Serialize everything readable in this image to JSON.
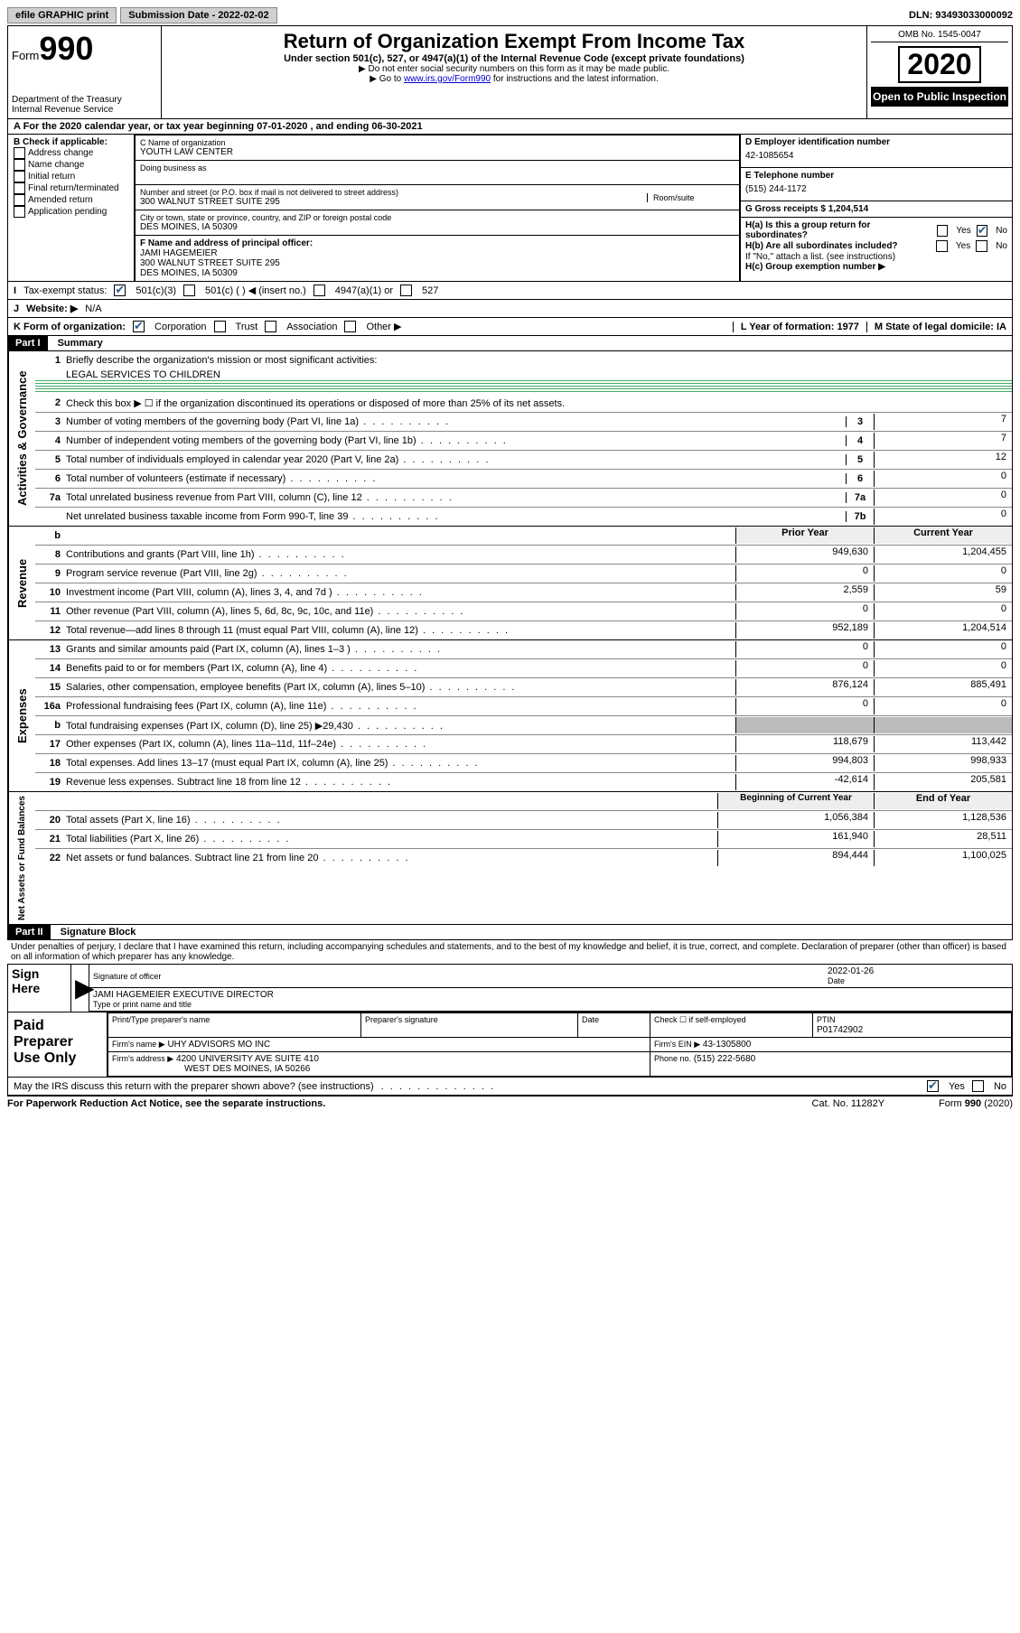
{
  "topbar": {
    "efile": "efile GRAPHIC print",
    "sub_label": "Submission Date - 2022-02-02",
    "dln": "DLN: 93493033000092"
  },
  "header": {
    "form_label": "Form",
    "form_num": "990",
    "dept1": "Department of the Treasury",
    "dept2": "Internal Revenue Service",
    "title": "Return of Organization Exempt From Income Tax",
    "subtitle": "Under section 501(c), 527, or 4947(a)(1) of the Internal Revenue Code (except private foundations)",
    "note1": "▶ Do not enter social security numbers on this form as it may be made public.",
    "note2_pre": "▶ Go to ",
    "note2_link": "www.irs.gov/Form990",
    "note2_post": " for instructions and the latest information.",
    "omb": "OMB No. 1545-0047",
    "year": "2020",
    "open": "Open to Public Inspection"
  },
  "rowA": "A For the 2020 calendar year, or tax year beginning 07-01-2020    , and ending 06-30-2021",
  "colB": {
    "title": "B Check if applicable:",
    "opts": [
      "Address change",
      "Name change",
      "Initial return",
      "Final return/terminated",
      "Amended return",
      "Application pending"
    ]
  },
  "colC": {
    "c_label": "C Name of organization",
    "org": "YOUTH LAW CENTER",
    "dba_label": "Doing business as",
    "addr_label": "Number and street (or P.O. box if mail is not delivered to street address)",
    "room": "Room/suite",
    "addr": "300 WALNUT STREET SUITE 295",
    "city_label": "City or town, state or province, country, and ZIP or foreign postal code",
    "city": "DES MOINES, IA  50309",
    "f_label": "F Name and address of principal officer:",
    "f_name": "JAMI HAGEMEIER",
    "f_addr1": "300 WALNUT STREET SUITE 295",
    "f_addr2": "DES MOINES, IA  50309"
  },
  "colD": {
    "d_label": "D Employer identification number",
    "ein": "42-1085654",
    "e_label": "E Telephone number",
    "phone": "(515) 244-1172",
    "g_label": "G Gross receipts $ 1,204,514",
    "ha": "H(a)  Is this a group return for subordinates?",
    "hb": "H(b)  Are all subordinates included?",
    "hb_note": "If \"No,\" attach a list. (see instructions)",
    "hc": "H(c)  Group exemption number ▶",
    "yes": "Yes",
    "no": "No"
  },
  "rowI": {
    "label": "Tax-exempt status:",
    "o1": "501(c)(3)",
    "o2": "501(c) (  ) ◀ (insert no.)",
    "o3": "4947(a)(1) or",
    "o4": "527"
  },
  "rowJ": {
    "label": "Website: ▶",
    "val": "N/A"
  },
  "rowK": {
    "label": "K Form of organization:",
    "o1": "Corporation",
    "o2": "Trust",
    "o3": "Association",
    "o4": "Other ▶",
    "l": "L Year of formation: 1977",
    "m": "M State of legal domicile: IA"
  },
  "partI": {
    "tag": "Part I",
    "title": "Summary",
    "l1": "Briefly describe the organization's mission or most significant activities:",
    "l1v": "LEGAL SERVICES TO CHILDREN",
    "l2": "Check this box ▶ ☐  if the organization discontinued its operations or disposed of more than 25% of its net assets.",
    "lines": [
      {
        "n": "3",
        "t": "Number of voting members of the governing body (Part VI, line 1a)",
        "c": "3",
        "v": "7"
      },
      {
        "n": "4",
        "t": "Number of independent voting members of the governing body (Part VI, line 1b)",
        "c": "4",
        "v": "7"
      },
      {
        "n": "5",
        "t": "Total number of individuals employed in calendar year 2020 (Part V, line 2a)",
        "c": "5",
        "v": "12"
      },
      {
        "n": "6",
        "t": "Total number of volunteers (estimate if necessary)",
        "c": "6",
        "v": "0"
      },
      {
        "n": "7a",
        "t": "Total unrelated business revenue from Part VIII, column (C), line 12",
        "c": "7a",
        "v": "0"
      },
      {
        "n": "",
        "t": "Net unrelated business taxable income from Form 990-T, line 39",
        "c": "7b",
        "v": "0"
      }
    ],
    "rev_hdr_b": "b",
    "rev_hdr_prior": "Prior Year",
    "rev_hdr_curr": "Current Year",
    "rev": [
      {
        "n": "8",
        "t": "Contributions and grants (Part VIII, line 1h)",
        "p": "949,630",
        "c": "1,204,455"
      },
      {
        "n": "9",
        "t": "Program service revenue (Part VIII, line 2g)",
        "p": "0",
        "c": "0"
      },
      {
        "n": "10",
        "t": "Investment income (Part VIII, column (A), lines 3, 4, and 7d )",
        "p": "2,559",
        "c": "59"
      },
      {
        "n": "11",
        "t": "Other revenue (Part VIII, column (A), lines 5, 6d, 8c, 9c, 10c, and 11e)",
        "p": "0",
        "c": "0"
      },
      {
        "n": "12",
        "t": "Total revenue—add lines 8 through 11 (must equal Part VIII, column (A), line 12)",
        "p": "952,189",
        "c": "1,204,514"
      }
    ],
    "exp": [
      {
        "n": "13",
        "t": "Grants and similar amounts paid (Part IX, column (A), lines 1–3 )",
        "p": "0",
        "c": "0"
      },
      {
        "n": "14",
        "t": "Benefits paid to or for members (Part IX, column (A), line 4)",
        "p": "0",
        "c": "0"
      },
      {
        "n": "15",
        "t": "Salaries, other compensation, employee benefits (Part IX, column (A), lines 5–10)",
        "p": "876,124",
        "c": "885,491"
      },
      {
        "n": "16a",
        "t": "Professional fundraising fees (Part IX, column (A), line 11e)",
        "p": "0",
        "c": "0"
      },
      {
        "n": "b",
        "t": "Total fundraising expenses (Part IX, column (D), line 25) ▶29,430",
        "p": "",
        "c": "",
        "gray": true
      },
      {
        "n": "17",
        "t": "Other expenses (Part IX, column (A), lines 11a–11d, 11f–24e)",
        "p": "118,679",
        "c": "113,442"
      },
      {
        "n": "18",
        "t": "Total expenses. Add lines 13–17 (must equal Part IX, column (A), line 25)",
        "p": "994,803",
        "c": "998,933"
      },
      {
        "n": "19",
        "t": "Revenue less expenses. Subtract line 18 from line 12",
        "p": "-42,614",
        "c": "205,581"
      }
    ],
    "na_hdr_b": "Beginning of Current Year",
    "na_hdr_e": "End of Year",
    "na": [
      {
        "n": "20",
        "t": "Total assets (Part X, line 16)",
        "p": "1,056,384",
        "c": "1,128,536"
      },
      {
        "n": "21",
        "t": "Total liabilities (Part X, line 26)",
        "p": "161,940",
        "c": "28,511"
      },
      {
        "n": "22",
        "t": "Net assets or fund balances. Subtract line 21 from line 20",
        "p": "894,444",
        "c": "1,100,025"
      }
    ],
    "vlabels": {
      "ag": "Activities & Governance",
      "rev": "Revenue",
      "exp": "Expenses",
      "na": "Net Assets or Fund Balances"
    }
  },
  "partII": {
    "tag": "Part II",
    "title": "Signature Block",
    "decl": "Under penalties of perjury, I declare that I have examined this return, including accompanying schedules and statements, and to the best of my knowledge and belief, it is true, correct, and complete. Declaration of preparer (other than officer) is based on all information of which preparer has any knowledge.",
    "sign_here": "Sign Here",
    "sig_officer": "Signature of officer",
    "sig_date_label": "Date",
    "sig_date": "2022-01-26",
    "sig_name": "JAMI HAGEMEIER  EXECUTIVE DIRECTOR",
    "sig_name_label": "Type or print name and title",
    "prep_here": "Paid Preparer Use Only",
    "prep_name_label": "Print/Type preparer's name",
    "prep_sig_label": "Preparer's signature",
    "prep_date": "Date",
    "prep_check": "Check ☐ if self-employed",
    "ptin_label": "PTIN",
    "ptin": "P01742902",
    "firm_name_label": "Firm's name   ▶",
    "firm_name": "UHY ADVISORS MO INC",
    "firm_ein_label": "Firm's EIN ▶",
    "firm_ein": "43-1305800",
    "firm_addr_label": "Firm's address ▶",
    "firm_addr1": "4200 UNIVERSITY AVE SUITE 410",
    "firm_addr2": "WEST DES MOINES, IA  50266",
    "firm_phone_label": "Phone no.",
    "firm_phone": "(515) 222-5680",
    "discuss": "May the IRS discuss this return with the preparer shown above? (see instructions)"
  },
  "footer": {
    "pra": "For Paperwork Reduction Act Notice, see the separate instructions.",
    "cat": "Cat. No. 11282Y",
    "form": "Form 990 (2020)"
  }
}
